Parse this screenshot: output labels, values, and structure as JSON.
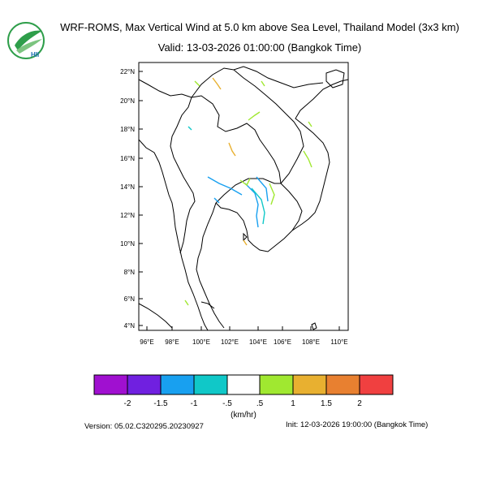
{
  "header": {
    "title": "WRF-ROMS, Max Vertical Wind at 5.0 km above Sea Level, Thailand Model (3x3 km)",
    "valid": "Valid: 13-03-2026 01:00:00 (Bangkok Time)",
    "logo_text": "HII"
  },
  "map": {
    "lat_ticks": [
      "22°N",
      "20°N",
      "18°N",
      "16°N",
      "14°N",
      "12°N",
      "10°N",
      "8°N",
      "6°N",
      "4°N"
    ],
    "lon_ticks": [
      "96°E",
      "98°E",
      "100°E",
      "102°E",
      "104°E",
      "106°E",
      "108°E",
      "110°E"
    ]
  },
  "colorbar": {
    "colors": [
      "#a010d0",
      "#7020e0",
      "#18a0f0",
      "#10c8c8",
      "#ffffff",
      "#a0e830",
      "#e8b030",
      "#e88030",
      "#f04040"
    ],
    "labels": [
      "-2",
      "-1.5",
      "-1",
      "-.5",
      ".5",
      "1",
      "1.5",
      "2"
    ],
    "unit": "(km/hr)"
  },
  "footer": {
    "version": "Version: 05.02.C320295.20230927",
    "init": "Init: 12-03-2026 19:00:00 (Bangkok Time)"
  }
}
